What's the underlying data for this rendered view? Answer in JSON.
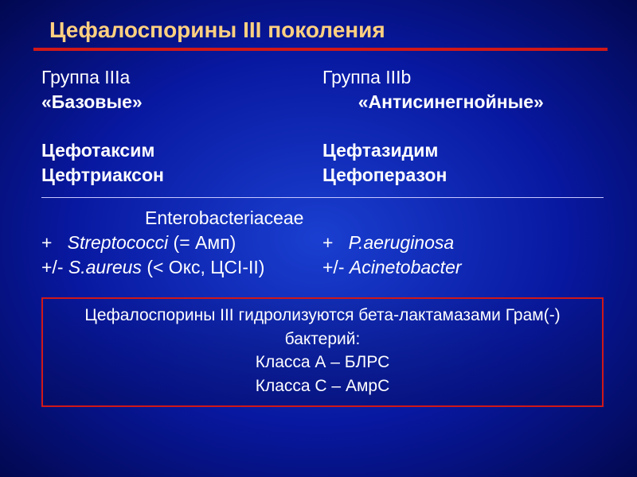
{
  "colors": {
    "title_color": "#ffd080",
    "underline_color": "#d01818",
    "text_color": "#ffffff",
    "divider_color": "#c8c8ff",
    "box_border": "#d01818",
    "bg_center": "#1a3fd0",
    "bg_edge": "#020850"
  },
  "typography": {
    "title_fontsize": 28,
    "body_fontsize": 23,
    "box_fontsize": 21,
    "font_family": "Arial"
  },
  "title": "Цефалоспорины III поколения",
  "left": {
    "group": "Группа IIIa",
    "label": "«Базовые»",
    "drug1": "Цефотаксим",
    "drug2": "Цефтриаксон"
  },
  "right": {
    "group": "Группа IIIb",
    "label": "       «Антисинегнойные»",
    "drug1": "Цефтазидим",
    "drug2": "Цефоперазон"
  },
  "spectrum": {
    "header": "Enterobacteriaceae",
    "left1_pre": "+   ",
    "left1_it": "Streptococci",
    "left1_post": " (= Амп)",
    "left2_pre": "+/- ",
    "left2_it": "S.aureus",
    "left2_post": " (< Окс, ЦСI-II)",
    "right1_pre": "+   ",
    "right1_it": "P.aeruginosa",
    "right2_pre": "+/- ",
    "right2_it": "Acinetobacter"
  },
  "box": {
    "line1": "Цефалоспорины III гидролизуются бета-лактамазами Грам(-) бактерий:",
    "line2": "Класса А – БЛРС",
    "line3": "Класса С – АмрС"
  }
}
